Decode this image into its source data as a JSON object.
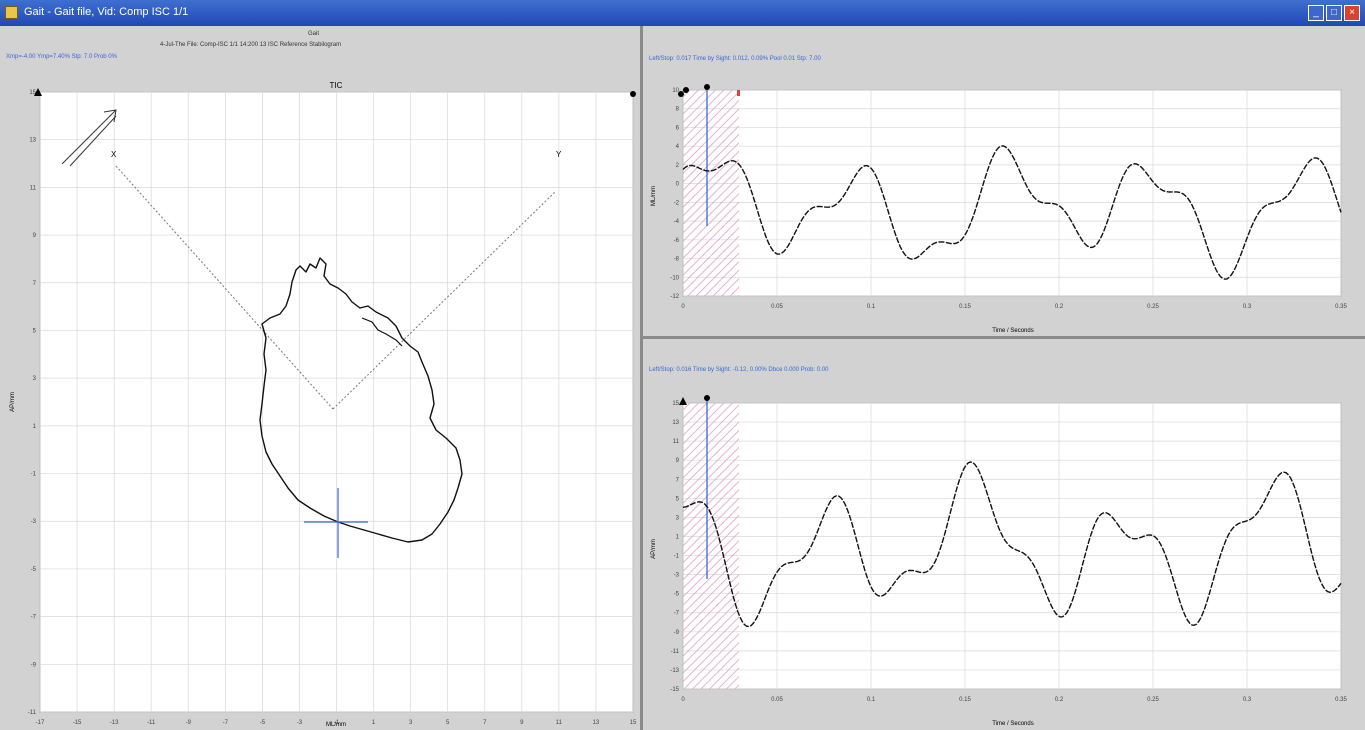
{
  "window": {
    "title": "Gait - Gait file, Vid: Comp ISC 1/1",
    "minimize_label": "_",
    "maximize_label": "□",
    "close_label": "×"
  },
  "left_panel": {
    "header_line1": "Gait",
    "header_line2": "4-Jul-The File: Comp-ISC 1/1 14:200 13 ISC Reference Stabilogram",
    "header_line3": "Xmp=-4.00 Ymp=7.40% Stp: 7.0 Prob 0%",
    "plot_title": "TIC",
    "xlabel": "ML/mm",
    "ylabel": "AP/mm",
    "y_ticks": [
      "15",
      "13",
      "11",
      "9",
      "7",
      "5",
      "3",
      "1",
      "-1",
      "-3",
      "-5",
      "-7",
      "-9",
      "-11"
    ],
    "x_ticks": [
      "-17",
      "-15",
      "-13",
      "-11",
      "-9",
      "-7",
      "-5",
      "-3",
      "-1",
      "1",
      "3",
      "5",
      "7",
      "9",
      "11",
      "13",
      "15"
    ],
    "axis_x_label": "X",
    "axis_y_label": "Y"
  },
  "right_top": {
    "header": "Left/Stop: 0.017 Time by Sight: 0.012, 0.09% Pool 0.01 Stp: 7.00",
    "xlabel": "Time / Seconds",
    "ylabel": "ML/mm",
    "y_ticks": [
      "10",
      "8",
      "6",
      "4",
      "2",
      "0",
      "-2",
      "-4",
      "-6",
      "-8",
      "-10",
      "-12"
    ],
    "x_ticks": [
      "0",
      "0.05",
      "0.1",
      "0.15",
      "0.2",
      "0.25",
      "0.3",
      "0.35"
    ]
  },
  "right_bottom": {
    "header": "Left/Stop: 0.016 Time by Sight: -0.12, 0.00% Dbce 0.000 Prob: 0.00",
    "xlabel": "Time / Seconds",
    "ylabel": "AP/mm",
    "y_ticks": [
      "15",
      "13",
      "11",
      "9",
      "7",
      "5",
      "3",
      "1",
      "-1",
      "-3",
      "-5",
      "-7",
      "-9",
      "-11",
      "-13",
      "-15"
    ],
    "x_ticks": [
      "0",
      "0.05",
      "0.1",
      "0.15",
      "0.2",
      "0.25",
      "0.3",
      "0.35"
    ]
  },
  "colors": {
    "titlebar": "#2a57c4",
    "trace": "#111111",
    "cursor": "#3a66d8",
    "hatch": "#e0a0c0"
  }
}
